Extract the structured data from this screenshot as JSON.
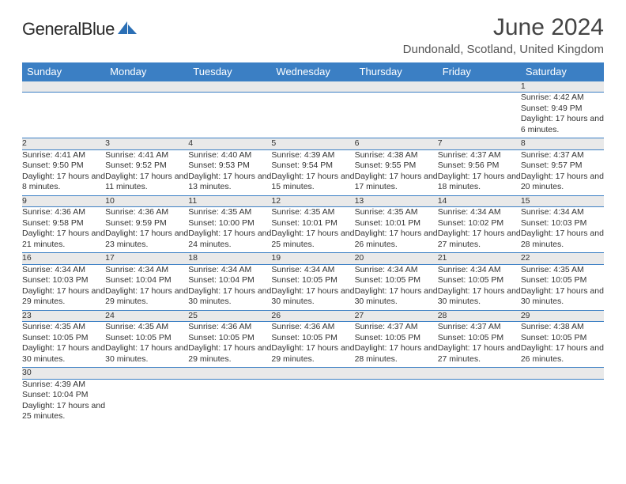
{
  "brand": {
    "name": "GeneralBlue"
  },
  "title": "June 2024",
  "location": "Dundonald, Scotland, United Kingdom",
  "colors": {
    "header_bg": "#3b7fc4",
    "header_text": "#ffffff",
    "daynum_bg": "#e9e9e9",
    "border": "#3b7fc4",
    "logo_blue": "#2b6fb5"
  },
  "weekdays": [
    "Sunday",
    "Monday",
    "Tuesday",
    "Wednesday",
    "Thursday",
    "Friday",
    "Saturday"
  ],
  "weeks": [
    [
      null,
      null,
      null,
      null,
      null,
      null,
      {
        "n": "1",
        "sr": "4:42 AM",
        "ss": "9:49 PM",
        "dl": "17 hours and 6 minutes."
      }
    ],
    [
      {
        "n": "2",
        "sr": "4:41 AM",
        "ss": "9:50 PM",
        "dl": "17 hours and 8 minutes."
      },
      {
        "n": "3",
        "sr": "4:41 AM",
        "ss": "9:52 PM",
        "dl": "17 hours and 11 minutes."
      },
      {
        "n": "4",
        "sr": "4:40 AM",
        "ss": "9:53 PM",
        "dl": "17 hours and 13 minutes."
      },
      {
        "n": "5",
        "sr": "4:39 AM",
        "ss": "9:54 PM",
        "dl": "17 hours and 15 minutes."
      },
      {
        "n": "6",
        "sr": "4:38 AM",
        "ss": "9:55 PM",
        "dl": "17 hours and 17 minutes."
      },
      {
        "n": "7",
        "sr": "4:37 AM",
        "ss": "9:56 PM",
        "dl": "17 hours and 18 minutes."
      },
      {
        "n": "8",
        "sr": "4:37 AM",
        "ss": "9:57 PM",
        "dl": "17 hours and 20 minutes."
      }
    ],
    [
      {
        "n": "9",
        "sr": "4:36 AM",
        "ss": "9:58 PM",
        "dl": "17 hours and 21 minutes."
      },
      {
        "n": "10",
        "sr": "4:36 AM",
        "ss": "9:59 PM",
        "dl": "17 hours and 23 minutes."
      },
      {
        "n": "11",
        "sr": "4:35 AM",
        "ss": "10:00 PM",
        "dl": "17 hours and 24 minutes."
      },
      {
        "n": "12",
        "sr": "4:35 AM",
        "ss": "10:01 PM",
        "dl": "17 hours and 25 minutes."
      },
      {
        "n": "13",
        "sr": "4:35 AM",
        "ss": "10:01 PM",
        "dl": "17 hours and 26 minutes."
      },
      {
        "n": "14",
        "sr": "4:34 AM",
        "ss": "10:02 PM",
        "dl": "17 hours and 27 minutes."
      },
      {
        "n": "15",
        "sr": "4:34 AM",
        "ss": "10:03 PM",
        "dl": "17 hours and 28 minutes."
      }
    ],
    [
      {
        "n": "16",
        "sr": "4:34 AM",
        "ss": "10:03 PM",
        "dl": "17 hours and 29 minutes."
      },
      {
        "n": "17",
        "sr": "4:34 AM",
        "ss": "10:04 PM",
        "dl": "17 hours and 29 minutes."
      },
      {
        "n": "18",
        "sr": "4:34 AM",
        "ss": "10:04 PM",
        "dl": "17 hours and 30 minutes."
      },
      {
        "n": "19",
        "sr": "4:34 AM",
        "ss": "10:05 PM",
        "dl": "17 hours and 30 minutes."
      },
      {
        "n": "20",
        "sr": "4:34 AM",
        "ss": "10:05 PM",
        "dl": "17 hours and 30 minutes."
      },
      {
        "n": "21",
        "sr": "4:34 AM",
        "ss": "10:05 PM",
        "dl": "17 hours and 30 minutes."
      },
      {
        "n": "22",
        "sr": "4:35 AM",
        "ss": "10:05 PM",
        "dl": "17 hours and 30 minutes."
      }
    ],
    [
      {
        "n": "23",
        "sr": "4:35 AM",
        "ss": "10:05 PM",
        "dl": "17 hours and 30 minutes."
      },
      {
        "n": "24",
        "sr": "4:35 AM",
        "ss": "10:05 PM",
        "dl": "17 hours and 30 minutes."
      },
      {
        "n": "25",
        "sr": "4:36 AM",
        "ss": "10:05 PM",
        "dl": "17 hours and 29 minutes."
      },
      {
        "n": "26",
        "sr": "4:36 AM",
        "ss": "10:05 PM",
        "dl": "17 hours and 29 minutes."
      },
      {
        "n": "27",
        "sr": "4:37 AM",
        "ss": "10:05 PM",
        "dl": "17 hours and 28 minutes."
      },
      {
        "n": "28",
        "sr": "4:37 AM",
        "ss": "10:05 PM",
        "dl": "17 hours and 27 minutes."
      },
      {
        "n": "29",
        "sr": "4:38 AM",
        "ss": "10:05 PM",
        "dl": "17 hours and 26 minutes."
      }
    ],
    [
      {
        "n": "30",
        "sr": "4:39 AM",
        "ss": "10:04 PM",
        "dl": "17 hours and 25 minutes."
      },
      null,
      null,
      null,
      null,
      null,
      null
    ]
  ],
  "labels": {
    "sunrise": "Sunrise:",
    "sunset": "Sunset:",
    "daylight": "Daylight:"
  }
}
